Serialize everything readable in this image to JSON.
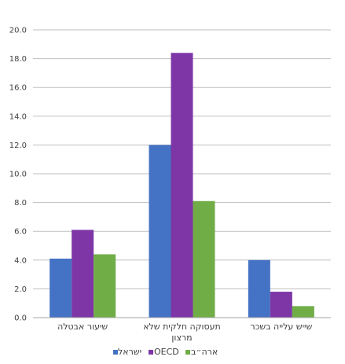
{
  "chart_data": {
    "type": "bar",
    "categories": [
      [
        "שיעור אבטלה"
      ],
      [
        "תעסוקה חלקית שלא",
        "מרצון"
      ],
      [
        "שייש עלייה בשכר"
      ]
    ],
    "series": [
      {
        "name": "ישראל",
        "values": [
          4.1,
          12.0,
          4.0
        ],
        "color": "#4472C4"
      },
      {
        "name": "OECD",
        "values": [
          6.1,
          18.4,
          1.8
        ],
        "color": "#7E36A7"
      },
      {
        "name": "ארה״ב",
        "values": [
          4.4,
          8.1,
          0.8
        ],
        "color": "#70AD47"
      }
    ],
    "ylim": [
      0,
      20
    ],
    "yticks": [
      "0.0",
      "2.0",
      "4.0",
      "6.0",
      "8.0",
      "10.0",
      "12.0",
      "14.0",
      "16.0",
      "18.0",
      "20.0"
    ],
    "grid": true,
    "legend_position": "bottom"
  }
}
